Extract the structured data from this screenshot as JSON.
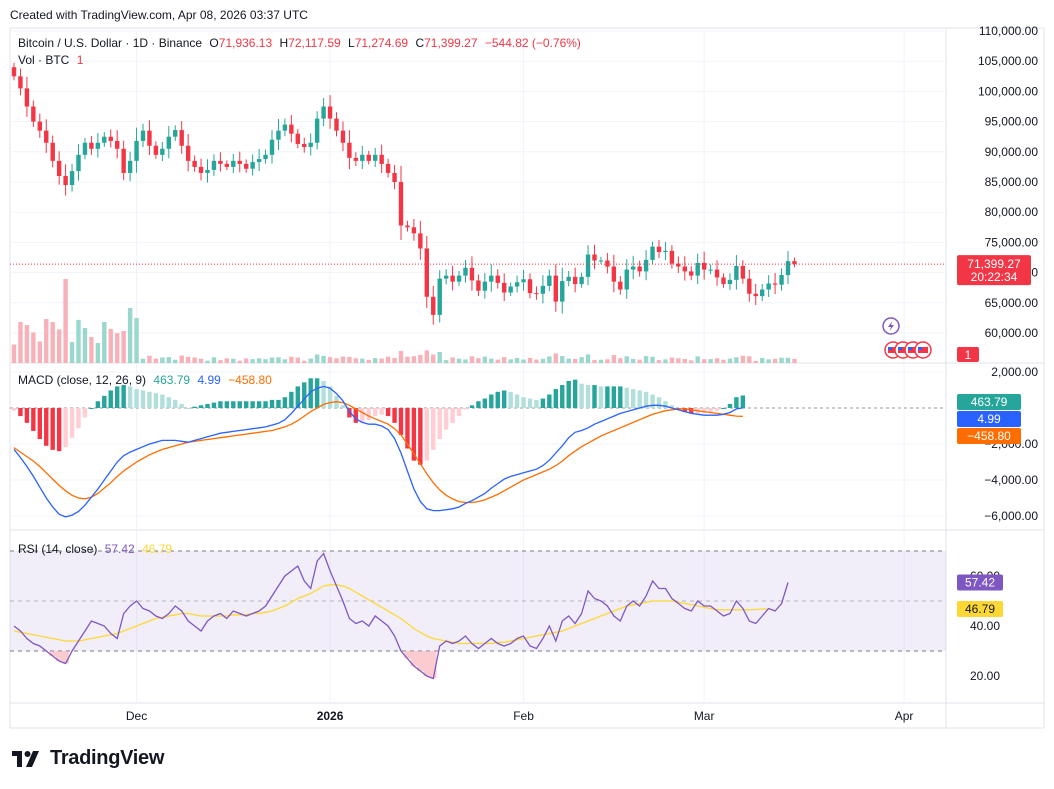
{
  "header": {
    "created": "Created with TradingView.com, Apr 08, 2026 03:37 UTC"
  },
  "legend": {
    "symbol": "Bitcoin / U.S. Dollar · 1D · Binance",
    "open_label": "O",
    "open": "71,936.13",
    "high_label": "H",
    "high": "72,117.59",
    "low_label": "L",
    "low": "71,274.69",
    "close_label": "C",
    "close": "71,399.27",
    "change": "−544.82 (−0.76%)",
    "vol_label": "Vol · BTC",
    "vol": "1"
  },
  "macd_legend": {
    "label": "MACD (close, 12, 26, 9)",
    "hist": "463.79",
    "macd": "4.99",
    "signal": "−458.80"
  },
  "rsi_legend": {
    "label": "RSI (14, close)",
    "rsi": "57.42",
    "ma": "46.79"
  },
  "price_tags": {
    "last": "71,399.27",
    "countdown": "20:22:34",
    "vol": "1"
  },
  "macd_tags": {
    "hist": "463.79",
    "macd": "4.99",
    "signal": "−458.80"
  },
  "rsi_tags": {
    "rsi": "57.42",
    "ma": "46.79"
  },
  "brand": {
    "name": "TradingView"
  },
  "colors": {
    "up": "#26a69a",
    "down": "#f23645",
    "macd": "#2962ff",
    "signal": "#ff6d00",
    "rsi": "#7e57c2",
    "rsi_ma": "#fdd835"
  },
  "chart_data": [
    {
      "type": "candlestick",
      "title": "Bitcoin / U.S. Dollar · 1D · Binance",
      "y_ticks": [
        "60,000.00",
        "65,000.00",
        "70,000.00",
        "75,000.00",
        "80,000.00",
        "85,000.00",
        "90,000.00",
        "95,000.00",
        "100,000.00",
        "105,000.00",
        "110,000.00"
      ],
      "y_tick_values": [
        60000,
        65000,
        70000,
        75000,
        80000,
        85000,
        90000,
        95000,
        100000,
        105000,
        110000
      ],
      "ylim": [
        57500,
        111500
      ],
      "x_ticks": [
        "Dec",
        "2026",
        "Feb",
        "Mar",
        "Apr"
      ],
      "x_tick_index": [
        19,
        49,
        79,
        107,
        138
      ],
      "close_path": [
        102500,
        100500,
        97500,
        95000,
        93500,
        91500,
        88500,
        86000,
        84500,
        86800,
        89500,
        91500,
        90500,
        91500,
        92500,
        91800,
        90500,
        86500,
        88500,
        91800,
        93500,
        91000,
        89500,
        90500,
        92500,
        93600,
        91000,
        88500,
        87500,
        86500,
        87000,
        88500,
        88000,
        87500,
        88500,
        88000,
        87200,
        88300,
        88800,
        89500,
        92000,
        93500,
        94500,
        93000,
        91300,
        90800,
        91500,
        95500,
        97500,
        95500,
        93500,
        91500,
        89000,
        88500,
        89500,
        88500,
        89500,
        88000,
        86500,
        85000,
        77800,
        77500,
        76500,
        74000,
        66000,
        63000,
        69000,
        69500,
        68500,
        69500,
        70800,
        68700,
        67000,
        68500,
        69500,
        68300,
        66700,
        67700,
        68400,
        68900,
        66600,
        66500,
        67800,
        69500,
        65200,
        68600,
        69300,
        68100,
        69300,
        73000,
        72000,
        72000,
        71000,
        68500,
        67200,
        70500,
        71000,
        70200,
        72100,
        74300,
        73400,
        73600,
        71500,
        71000,
        70200,
        69500,
        71600,
        70500,
        70500,
        69200,
        68100,
        68800,
        71100,
        69000,
        66500,
        66100,
        67200,
        68200,
        68000,
        69600,
        71900,
        71400
      ],
      "volume_bars": "relative heights only (no axis)",
      "last_price": 71399.27
    },
    {
      "type": "line",
      "title": "MACD (close, 12, 26, 9)",
      "y_ticks": [
        "−6,000.00",
        "−4,000.00",
        "−2,000.00",
        "2,000.00"
      ],
      "y_tick_values": [
        -6000,
        -4000,
        -2000,
        2000
      ],
      "series": [
        {
          "name": "MACD",
          "values": [
            -2300,
            -2750,
            -3250,
            -3800,
            -4400,
            -5000,
            -5500,
            -5900,
            -6050,
            -5950,
            -5750,
            -5400,
            -4950,
            -4500,
            -4000,
            -3500,
            -3000,
            -2650,
            -2450,
            -2300,
            -2150,
            -2000,
            -1900,
            -1800,
            -1800,
            -1800,
            -1850,
            -1900,
            -1800,
            -1700,
            -1600,
            -1500,
            -1400,
            -1350,
            -1300,
            -1250,
            -1200,
            -1150,
            -1100,
            -1050,
            -950,
            -850,
            -650,
            -300,
            100,
            500,
            900,
            1100,
            1200,
            1100,
            800,
            400,
            -200,
            -600,
            -800,
            -900,
            -900,
            -1000,
            -1200,
            -1700,
            -2500,
            -3500,
            -4500,
            -5200,
            -5600,
            -5700,
            -5700,
            -5650,
            -5600,
            -5500,
            -5300,
            -5150,
            -4950,
            -4750,
            -4450,
            -4200,
            -3950,
            -3800,
            -3700,
            -3600,
            -3500,
            -3400,
            -3200,
            -2900,
            -2500,
            -2100,
            -1650,
            -1350,
            -1250,
            -1100,
            -900,
            -750,
            -600,
            -450,
            -300,
            -200,
            -100,
            0,
            100,
            150,
            150,
            100,
            0,
            -100,
            -200,
            -300,
            -350,
            -400,
            -400,
            -400,
            -350,
            -250,
            -50,
            4.99
          ]
        },
        {
          "name": "Signal",
          "values": [
            -2200,
            -2450,
            -2700,
            -2950,
            -3250,
            -3600,
            -3950,
            -4300,
            -4600,
            -4850,
            -5000,
            -5050,
            -4950,
            -4750,
            -4450,
            -4150,
            -3800,
            -3500,
            -3250,
            -3000,
            -2800,
            -2600,
            -2450,
            -2300,
            -2200,
            -2100,
            -2000,
            -1900,
            -1850,
            -1800,
            -1750,
            -1700,
            -1650,
            -1600,
            -1550,
            -1500,
            -1450,
            -1400,
            -1350,
            -1300,
            -1250,
            -1150,
            -1050,
            -900,
            -700,
            -450,
            -200,
            0,
            200,
            300,
            350,
            300,
            150,
            -50,
            -250,
            -450,
            -600,
            -750,
            -900,
            -1150,
            -1500,
            -2000,
            -2550,
            -3100,
            -3650,
            -4150,
            -4550,
            -4850,
            -5050,
            -5200,
            -5250,
            -5250,
            -5200,
            -5100,
            -4950,
            -4800,
            -4600,
            -4400,
            -4200,
            -4000,
            -3850,
            -3700,
            -3550,
            -3400,
            -3200,
            -2950,
            -2650,
            -2400,
            -2150,
            -1950,
            -1750,
            -1550,
            -1400,
            -1250,
            -1100,
            -950,
            -800,
            -650,
            -500,
            -350,
            -250,
            -150,
            -100,
            -50,
            -50,
            -100,
            -150,
            -200,
            -250,
            -300,
            -350,
            -400,
            -450,
            -458.8
          ]
        }
      ],
      "last_values": {
        "histogram": 463.79,
        "macd": 4.99,
        "signal": -458.8
      }
    },
    {
      "type": "line",
      "title": "RSI (14, close)",
      "y_ticks": [
        "20.00",
        "40.00",
        "60.00"
      ],
      "y_tick_values": [
        20,
        40,
        60
      ],
      "band": [
        30,
        70
      ],
      "series": [
        {
          "name": "RSI",
          "values": [
            40,
            38,
            35,
            33,
            32,
            30,
            28,
            26,
            25,
            30,
            34,
            38,
            42,
            41,
            40,
            37,
            35,
            45,
            48,
            50,
            47,
            46,
            44,
            43,
            45,
            48,
            46,
            42,
            40,
            38,
            42,
            44,
            45,
            43,
            46,
            45,
            44,
            45,
            46,
            48,
            52,
            56,
            60,
            62,
            64,
            58,
            55,
            66,
            69,
            62,
            56,
            50,
            43,
            41,
            42,
            40,
            44,
            42,
            40,
            36,
            30,
            27,
            24,
            22,
            20,
            19,
            32,
            34,
            33,
            34,
            36,
            33,
            31,
            33,
            35,
            33,
            32,
            33,
            35,
            36,
            32,
            31,
            35,
            40,
            34,
            42,
            44,
            41,
            45,
            54,
            51,
            50,
            48,
            44,
            42,
            48,
            50,
            48,
            52,
            58,
            55,
            55,
            51,
            49,
            47,
            46,
            50,
            48,
            48,
            46,
            44,
            45,
            50,
            47,
            42,
            41,
            44,
            47,
            46,
            49,
            57.42
          ]
        },
        {
          "name": "RSI MA",
          "values": [
            38,
            37.5,
            37,
            36.5,
            36,
            35.5,
            35,
            34.5,
            34,
            34,
            34,
            34.5,
            35,
            35.5,
            36,
            36.5,
            37,
            38,
            39,
            40,
            41,
            42,
            43,
            43.5,
            44,
            44.5,
            45,
            45,
            44.5,
            44,
            44,
            44,
            44,
            44,
            44.5,
            44.5,
            44.5,
            45,
            45,
            45.5,
            46,
            47,
            48,
            49.5,
            51,
            52,
            53,
            54.5,
            56,
            56.5,
            56.5,
            56,
            55,
            53.5,
            52,
            50.5,
            49,
            47.5,
            46,
            44.5,
            43,
            41,
            39,
            37.5,
            36,
            35,
            34.5,
            34,
            33.5,
            33,
            33,
            33,
            33,
            33,
            33,
            33.5,
            33.5,
            34,
            34.5,
            35,
            35.5,
            36,
            36.5,
            37,
            37.5,
            38,
            39,
            40,
            41,
            42,
            43,
            44,
            45,
            46,
            47,
            48,
            48.5,
            49,
            49.5,
            50,
            50,
            50,
            50,
            49.5,
            49,
            48.5,
            48,
            47.5,
            47,
            46.5,
            46.5,
            46.5,
            46.5,
            46.5,
            46.5,
            46.6,
            46.8,
            46.79
          ]
        }
      ],
      "last_values": {
        "rsi": 57.42,
        "ma": 46.79
      }
    }
  ]
}
